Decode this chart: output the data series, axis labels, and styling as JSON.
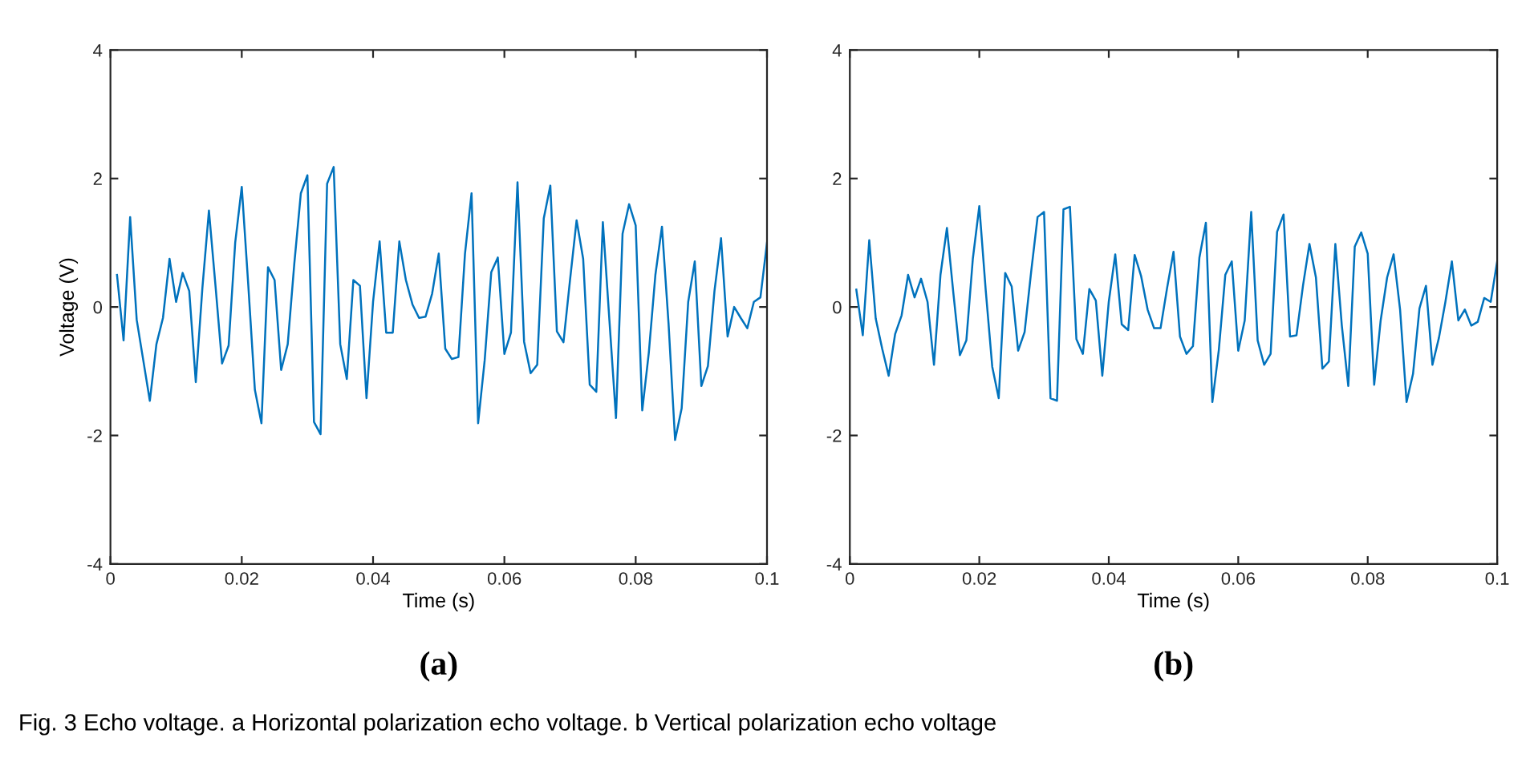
{
  "chart_data": [
    {
      "type": "line",
      "xlabel": "Time (s)",
      "ylabel": "Voltage (V)",
      "xlim": [
        0,
        0.1
      ],
      "ylim": [
        -4,
        4
      ],
      "xticks": [
        0,
        0.02,
        0.04,
        0.06,
        0.08,
        0.1
      ],
      "yticks": [
        -4,
        -2,
        0,
        2,
        4
      ],
      "grid": false,
      "legend": false,
      "marker": "none",
      "line_style": "solid",
      "annotations": [
        "(a)",
        "Fig. 3 Echo voltage. a Horizontal polarization echo voltage. b Vertical polarization echo voltage"
      ],
      "x": [
        0.001,
        0.002,
        0.003,
        0.004,
        0.005,
        0.006,
        0.007,
        0.008,
        0.009,
        0.01,
        0.011,
        0.012,
        0.013,
        0.014,
        0.015,
        0.016,
        0.017,
        0.018,
        0.019,
        0.02,
        0.021,
        0.022,
        0.023,
        0.024,
        0.025,
        0.026,
        0.027,
        0.028,
        0.029,
        0.03,
        0.031,
        0.032,
        0.033,
        0.034,
        0.035,
        0.036,
        0.037,
        0.038,
        0.039,
        0.04,
        0.041,
        0.042,
        0.043,
        0.044,
        0.045,
        0.046,
        0.047,
        0.048,
        0.049,
        0.05,
        0.051,
        0.052,
        0.053,
        0.054,
        0.055,
        0.056,
        0.057,
        0.058,
        0.059,
        0.06,
        0.061,
        0.062,
        0.063,
        0.064,
        0.065,
        0.066,
        0.067,
        0.068,
        0.069,
        0.07,
        0.071,
        0.072,
        0.073,
        0.074,
        0.075,
        0.076,
        0.077,
        0.078,
        0.079,
        0.08,
        0.081,
        0.082,
        0.083,
        0.084,
        0.085,
        0.086,
        0.087,
        0.088,
        0.089,
        0.09,
        0.091,
        0.092,
        0.093,
        0.094,
        0.095,
        0.096,
        0.097,
        0.098,
        0.099,
        0.1
      ],
      "series": [
        {
          "color": "#0072bd",
          "values": [
            0.5,
            -0.52,
            1.4,
            -0.2,
            -0.83,
            -1.46,
            -0.58,
            -0.17,
            0.75,
            0.08,
            0.53,
            0.25,
            -1.17,
            0.29,
            1.5,
            0.33,
            -0.88,
            -0.6,
            1.0,
            1.87,
            0.33,
            -1.29,
            -1.81,
            0.62,
            0.42,
            -0.98,
            -0.58,
            0.67,
            1.77,
            2.05,
            -1.79,
            -1.98,
            1.92,
            2.18,
            -0.58,
            -1.12,
            0.42,
            0.33,
            -1.42,
            0.08,
            1.02,
            -0.4,
            -0.4,
            1.02,
            0.42,
            0.04,
            -0.17,
            -0.15,
            0.21,
            0.83,
            -0.65,
            -0.81,
            -0.78,
            0.83,
            1.77,
            -1.81,
            -0.83,
            0.54,
            0.77,
            -0.73,
            -0.4,
            1.94,
            -0.54,
            -1.03,
            -0.9,
            1.38,
            1.89,
            -0.38,
            -0.55,
            0.42,
            1.35,
            0.75,
            -1.21,
            -1.32,
            1.32,
            -0.21,
            -1.73,
            1.14,
            1.6,
            1.27,
            -1.61,
            -0.71,
            0.5,
            1.25,
            -0.25,
            -2.07,
            -1.58,
            0.08,
            0.71,
            -1.23,
            -0.92,
            0.25,
            1.07,
            -0.46,
            0,
            -0.17,
            -0.33,
            0.08,
            0.15,
            1.0
          ]
        }
      ]
    },
    {
      "type": "line",
      "xlabel": "Time (s)",
      "xlim": [
        0,
        0.1
      ],
      "ylim": [
        -4,
        4
      ],
      "xticks": [
        0,
        0.02,
        0.04,
        0.06,
        0.08,
        0.1
      ],
      "yticks": [
        -4,
        -2,
        0,
        2,
        4
      ],
      "grid": false,
      "legend": false,
      "marker": "none",
      "line_style": "solid",
      "annotations": [
        "(b)"
      ],
      "x": [
        0.001,
        0.002,
        0.003,
        0.004,
        0.005,
        0.006,
        0.007,
        0.008,
        0.009,
        0.01,
        0.011,
        0.012,
        0.013,
        0.014,
        0.015,
        0.016,
        0.017,
        0.018,
        0.019,
        0.02,
        0.021,
        0.022,
        0.023,
        0.024,
        0.025,
        0.026,
        0.027,
        0.028,
        0.029,
        0.03,
        0.031,
        0.032,
        0.033,
        0.034,
        0.035,
        0.036,
        0.037,
        0.038,
        0.039,
        0.04,
        0.041,
        0.042,
        0.043,
        0.044,
        0.045,
        0.046,
        0.047,
        0.048,
        0.049,
        0.05,
        0.051,
        0.052,
        0.053,
        0.054,
        0.055,
        0.056,
        0.057,
        0.058,
        0.059,
        0.06,
        0.061,
        0.062,
        0.063,
        0.064,
        0.065,
        0.066,
        0.067,
        0.068,
        0.069,
        0.07,
        0.071,
        0.072,
        0.073,
        0.074,
        0.075,
        0.076,
        0.077,
        0.078,
        0.079,
        0.08,
        0.081,
        0.082,
        0.083,
        0.084,
        0.085,
        0.086,
        0.087,
        0.088,
        0.089,
        0.09,
        0.091,
        0.092,
        0.093,
        0.094,
        0.095,
        0.096,
        0.097,
        0.098,
        0.099,
        0.1
      ],
      "series": [
        {
          "color": "#0072bd",
          "values": [
            0.27,
            -0.44,
            1.04,
            -0.18,
            -0.65,
            -1.07,
            -0.42,
            -0.13,
            0.5,
            0.15,
            0.44,
            0.08,
            -0.9,
            0.5,
            1.23,
            0.21,
            -0.75,
            -0.52,
            0.75,
            1.57,
            0.25,
            -0.93,
            -1.42,
            0.53,
            0.32,
            -0.68,
            -0.39,
            0.54,
            1.4,
            1.48,
            -1.42,
            -1.46,
            1.52,
            1.56,
            -0.5,
            -0.73,
            0.28,
            0.1,
            -1.07,
            0.08,
            0.82,
            -0.27,
            -0.36,
            0.81,
            0.48,
            -0.04,
            -0.33,
            -0.33,
            0.29,
            0.86,
            -0.46,
            -0.73,
            -0.61,
            0.77,
            1.31,
            -1.48,
            -0.67,
            0.5,
            0.71,
            -0.68,
            -0.21,
            1.48,
            -0.52,
            -0.9,
            -0.73,
            1.17,
            1.44,
            -0.46,
            -0.44,
            0.33,
            0.98,
            0.46,
            -0.96,
            -0.85,
            0.98,
            -0.29,
            -1.23,
            0.94,
            1.16,
            0.83,
            -1.21,
            -0.21,
            0.46,
            0.82,
            -0.04,
            -1.48,
            -1.04,
            -0.02,
            0.33,
            -0.9,
            -0.48,
            0.08,
            0.71,
            -0.21,
            -0.04,
            -0.29,
            -0.23,
            0.14,
            0.08,
            0.71
          ]
        }
      ]
    }
  ]
}
